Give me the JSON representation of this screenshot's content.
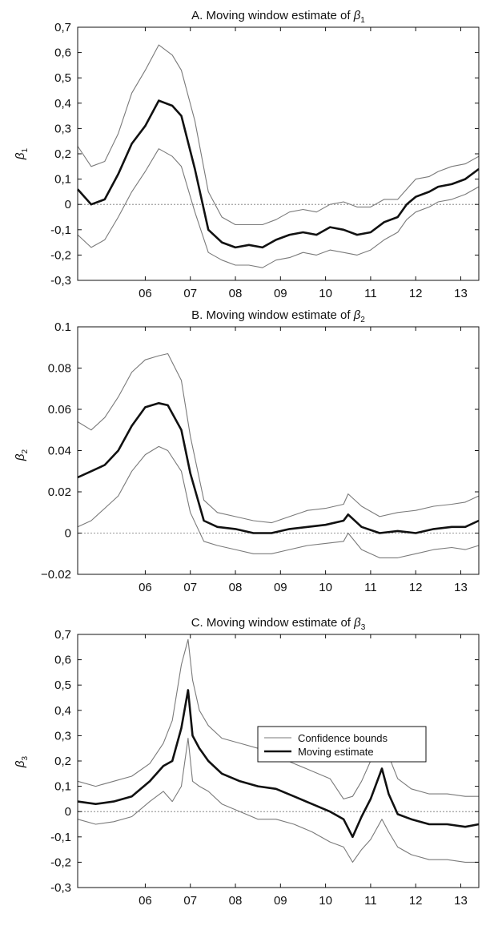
{
  "chart_data": [
    {
      "type": "line",
      "title": "A. Moving window estimate of β₁",
      "title_prefix": "A. Moving window estimate of ",
      "ylabel_symbol": "β",
      "ylabel_sub": "1",
      "xlabel": "",
      "xlim": [
        2005.0,
        2013.9
      ],
      "ylim": [
        -0.3,
        0.7
      ],
      "x_ticks": [
        2006.5,
        2007.5,
        2008.5,
        2009.5,
        2010.5,
        2011.5,
        2012.5,
        2013.5
      ],
      "x_tick_labels": [
        "06",
        "07",
        "08",
        "09",
        "10",
        "11",
        "12",
        "13"
      ],
      "y_ticks": [
        -0.3,
        -0.2,
        -0.1,
        0,
        0.1,
        0.2,
        0.3,
        0.4,
        0.5,
        0.6,
        0.7
      ],
      "y_tick_labels": [
        "-0,3",
        "-0,2",
        "-0,1",
        "0",
        "0,1",
        "0,2",
        "0,3",
        "0,4",
        "0,5",
        "0,6",
        "0,7"
      ],
      "zero_line": true,
      "grid": false,
      "series": [
        {
          "role": "upper-bound",
          "color": "#7a7a7a",
          "x": [
            2005.0,
            2005.3,
            2005.6,
            2005.9,
            2006.2,
            2006.5,
            2006.8,
            2007.1,
            2007.3,
            2007.6,
            2007.9,
            2008.2,
            2008.5,
            2008.8,
            2009.1,
            2009.4,
            2009.7,
            2010.0,
            2010.3,
            2010.6,
            2010.9,
            2011.2,
            2011.5,
            2011.8,
            2012.1,
            2012.3,
            2012.5,
            2012.8,
            2013.0,
            2013.3,
            2013.6,
            2013.9
          ],
          "y": [
            0.23,
            0.15,
            0.17,
            0.28,
            0.44,
            0.53,
            0.63,
            0.59,
            0.53,
            0.33,
            0.05,
            -0.05,
            -0.08,
            -0.08,
            -0.08,
            -0.06,
            -0.03,
            -0.02,
            -0.03,
            0.0,
            0.01,
            -0.01,
            -0.01,
            0.02,
            0.02,
            0.06,
            0.1,
            0.11,
            0.13,
            0.15,
            0.16,
            0.19
          ]
        },
        {
          "role": "moving-estimate",
          "color": "#111111",
          "x": [
            2005.0,
            2005.3,
            2005.6,
            2005.9,
            2006.2,
            2006.5,
            2006.8,
            2007.1,
            2007.3,
            2007.6,
            2007.9,
            2008.2,
            2008.5,
            2008.8,
            2009.1,
            2009.4,
            2009.7,
            2010.0,
            2010.3,
            2010.6,
            2010.9,
            2011.2,
            2011.5,
            2011.8,
            2012.1,
            2012.3,
            2012.5,
            2012.8,
            2013.0,
            2013.3,
            2013.6,
            2013.9
          ],
          "y": [
            0.06,
            0.0,
            0.02,
            0.12,
            0.24,
            0.31,
            0.41,
            0.39,
            0.35,
            0.14,
            -0.1,
            -0.15,
            -0.17,
            -0.16,
            -0.17,
            -0.14,
            -0.12,
            -0.11,
            -0.12,
            -0.09,
            -0.1,
            -0.12,
            -0.11,
            -0.07,
            -0.05,
            0.0,
            0.03,
            0.05,
            0.07,
            0.08,
            0.1,
            0.14
          ]
        },
        {
          "role": "lower-bound",
          "color": "#7a7a7a",
          "x": [
            2005.0,
            2005.3,
            2005.6,
            2005.9,
            2006.2,
            2006.5,
            2006.8,
            2007.1,
            2007.3,
            2007.6,
            2007.9,
            2008.2,
            2008.5,
            2008.8,
            2009.1,
            2009.4,
            2009.7,
            2010.0,
            2010.3,
            2010.6,
            2010.9,
            2011.2,
            2011.5,
            2011.8,
            2012.1,
            2012.3,
            2012.5,
            2012.8,
            2013.0,
            2013.3,
            2013.6,
            2013.9
          ],
          "y": [
            -0.12,
            -0.17,
            -0.14,
            -0.05,
            0.05,
            0.13,
            0.22,
            0.19,
            0.15,
            -0.03,
            -0.19,
            -0.22,
            -0.24,
            -0.24,
            -0.25,
            -0.22,
            -0.21,
            -0.19,
            -0.2,
            -0.18,
            -0.19,
            -0.2,
            -0.18,
            -0.14,
            -0.11,
            -0.06,
            -0.03,
            -0.01,
            0.01,
            0.02,
            0.04,
            0.07
          ]
        }
      ]
    },
    {
      "type": "line",
      "title": "B. Moving window estimate of β₂",
      "title_prefix": "B. Moving window estimate of ",
      "ylabel_symbol": "β",
      "ylabel_sub": "2",
      "xlabel": "",
      "xlim": [
        2005.0,
        2013.9
      ],
      "ylim": [
        -0.02,
        0.1
      ],
      "x_ticks": [
        2006.5,
        2007.5,
        2008.5,
        2009.5,
        2010.5,
        2011.5,
        2012.5,
        2013.5
      ],
      "x_tick_labels": [
        "06",
        "07",
        "08",
        "09",
        "10",
        "11",
        "12",
        "13"
      ],
      "y_ticks": [
        -0.02,
        0,
        0.02,
        0.04,
        0.06,
        0.08,
        0.1
      ],
      "y_tick_labels": [
        "−0.02",
        "0",
        "0.02",
        "0.04",
        "0.06",
        "0.08",
        "0.1"
      ],
      "zero_line": true,
      "grid": false,
      "series": [
        {
          "role": "upper-bound",
          "color": "#7a7a7a",
          "x": [
            2005.0,
            2005.3,
            2005.6,
            2005.9,
            2006.2,
            2006.5,
            2006.8,
            2007.0,
            2007.3,
            2007.5,
            2007.8,
            2008.1,
            2008.5,
            2008.9,
            2009.3,
            2009.7,
            2010.1,
            2010.5,
            2010.9,
            2011.0,
            2011.3,
            2011.7,
            2012.1,
            2012.5,
            2012.9,
            2013.3,
            2013.6,
            2013.9
          ],
          "y": [
            0.054,
            0.05,
            0.056,
            0.066,
            0.078,
            0.084,
            0.086,
            0.087,
            0.074,
            0.047,
            0.016,
            0.01,
            0.008,
            0.006,
            0.005,
            0.008,
            0.011,
            0.012,
            0.014,
            0.019,
            0.013,
            0.008,
            0.01,
            0.011,
            0.013,
            0.014,
            0.015,
            0.018
          ]
        },
        {
          "role": "moving-estimate",
          "color": "#111111",
          "x": [
            2005.0,
            2005.3,
            2005.6,
            2005.9,
            2006.2,
            2006.5,
            2006.8,
            2007.0,
            2007.3,
            2007.5,
            2007.8,
            2008.1,
            2008.5,
            2008.9,
            2009.3,
            2009.7,
            2010.1,
            2010.5,
            2010.9,
            2011.0,
            2011.3,
            2011.7,
            2012.1,
            2012.5,
            2012.9,
            2013.3,
            2013.6,
            2013.9
          ],
          "y": [
            0.027,
            0.03,
            0.033,
            0.04,
            0.052,
            0.061,
            0.063,
            0.062,
            0.05,
            0.029,
            0.006,
            0.003,
            0.002,
            0.0,
            0.0,
            0.002,
            0.003,
            0.004,
            0.006,
            0.009,
            0.003,
            0.0,
            0.001,
            0.0,
            0.002,
            0.003,
            0.003,
            0.006
          ]
        },
        {
          "role": "lower-bound",
          "color": "#7a7a7a",
          "x": [
            2005.0,
            2005.3,
            2005.6,
            2005.9,
            2006.2,
            2006.5,
            2006.8,
            2007.0,
            2007.3,
            2007.5,
            2007.8,
            2008.1,
            2008.5,
            2008.9,
            2009.3,
            2009.7,
            2010.1,
            2010.5,
            2010.9,
            2011.0,
            2011.3,
            2011.7,
            2012.1,
            2012.5,
            2012.9,
            2013.3,
            2013.6,
            2013.9
          ],
          "y": [
            0.003,
            0.006,
            0.012,
            0.018,
            0.03,
            0.038,
            0.042,
            0.04,
            0.03,
            0.01,
            -0.004,
            -0.006,
            -0.008,
            -0.01,
            -0.01,
            -0.008,
            -0.006,
            -0.005,
            -0.004,
            0.0,
            -0.008,
            -0.012,
            -0.012,
            -0.01,
            -0.008,
            -0.007,
            -0.008,
            -0.006
          ]
        }
      ]
    },
    {
      "type": "line",
      "title": "C. Moving window estimate of β₃",
      "title_prefix": "C. Moving window estimate of ",
      "ylabel_symbol": "β",
      "ylabel_sub": "3",
      "xlabel": "",
      "xlim": [
        2005.0,
        2013.9
      ],
      "ylim": [
        -0.3,
        0.7
      ],
      "x_ticks": [
        2006.5,
        2007.5,
        2008.5,
        2009.5,
        2010.5,
        2011.5,
        2012.5,
        2013.5
      ],
      "x_tick_labels": [
        "06",
        "07",
        "08",
        "09",
        "10",
        "11",
        "12",
        "13"
      ],
      "y_ticks": [
        -0.3,
        -0.2,
        -0.1,
        0,
        0.1,
        0.2,
        0.3,
        0.4,
        0.5,
        0.6,
        0.7
      ],
      "y_tick_labels": [
        "-0,3",
        "-0,2",
        "-0,1",
        "0",
        "0,1",
        "0,2",
        "0,3",
        "0,4",
        "0,5",
        "0,6",
        "0,7"
      ],
      "zero_line": true,
      "grid": false,
      "legend": {
        "position": "right-middle",
        "entries": [
          "Confidence bounds",
          "Moving estimate"
        ]
      },
      "series": [
        {
          "role": "upper-bound",
          "color": "#7a7a7a",
          "x": [
            2005.0,
            2005.4,
            2005.8,
            2006.2,
            2006.6,
            2006.9,
            2007.1,
            2007.3,
            2007.45,
            2007.55,
            2007.7,
            2007.9,
            2008.2,
            2008.6,
            2009.0,
            2009.4,
            2009.8,
            2010.2,
            2010.6,
            2010.9,
            2011.1,
            2011.3,
            2011.5,
            2011.75,
            2011.9,
            2012.1,
            2012.4,
            2012.8,
            2013.2,
            2013.6,
            2013.9
          ],
          "y": [
            0.12,
            0.1,
            0.12,
            0.14,
            0.19,
            0.27,
            0.36,
            0.58,
            0.68,
            0.52,
            0.4,
            0.34,
            0.29,
            0.27,
            0.25,
            0.22,
            0.19,
            0.16,
            0.13,
            0.05,
            0.06,
            0.12,
            0.2,
            0.3,
            0.22,
            0.13,
            0.09,
            0.07,
            0.07,
            0.06,
            0.06
          ]
        },
        {
          "role": "moving-estimate",
          "color": "#111111",
          "x": [
            2005.0,
            2005.4,
            2005.8,
            2006.2,
            2006.6,
            2006.9,
            2007.1,
            2007.3,
            2007.45,
            2007.55,
            2007.7,
            2007.9,
            2008.2,
            2008.6,
            2009.0,
            2009.4,
            2009.8,
            2010.2,
            2010.6,
            2010.9,
            2011.1,
            2011.3,
            2011.5,
            2011.75,
            2011.9,
            2012.1,
            2012.4,
            2012.8,
            2013.2,
            2013.6,
            2013.9
          ],
          "y": [
            0.04,
            0.03,
            0.04,
            0.06,
            0.12,
            0.18,
            0.2,
            0.33,
            0.48,
            0.3,
            0.25,
            0.2,
            0.15,
            0.12,
            0.1,
            0.09,
            0.06,
            0.03,
            0.0,
            -0.03,
            -0.1,
            -0.02,
            0.05,
            0.17,
            0.07,
            -0.01,
            -0.03,
            -0.05,
            -0.05,
            -0.06,
            -0.05
          ]
        },
        {
          "role": "lower-bound",
          "color": "#7a7a7a",
          "x": [
            2005.0,
            2005.4,
            2005.8,
            2006.2,
            2006.6,
            2006.9,
            2007.1,
            2007.3,
            2007.45,
            2007.55,
            2007.7,
            2007.9,
            2008.2,
            2008.6,
            2009.0,
            2009.4,
            2009.8,
            2010.2,
            2010.6,
            2010.9,
            2011.1,
            2011.3,
            2011.5,
            2011.75,
            2011.9,
            2012.1,
            2012.4,
            2012.8,
            2013.2,
            2013.6,
            2013.9
          ],
          "y": [
            -0.03,
            -0.05,
            -0.04,
            -0.02,
            0.04,
            0.08,
            0.04,
            0.1,
            0.29,
            0.12,
            0.1,
            0.08,
            0.03,
            0.0,
            -0.03,
            -0.03,
            -0.05,
            -0.08,
            -0.12,
            -0.14,
            -0.2,
            -0.15,
            -0.11,
            -0.03,
            -0.08,
            -0.14,
            -0.17,
            -0.19,
            -0.19,
            -0.2,
            -0.2
          ]
        }
      ]
    }
  ]
}
